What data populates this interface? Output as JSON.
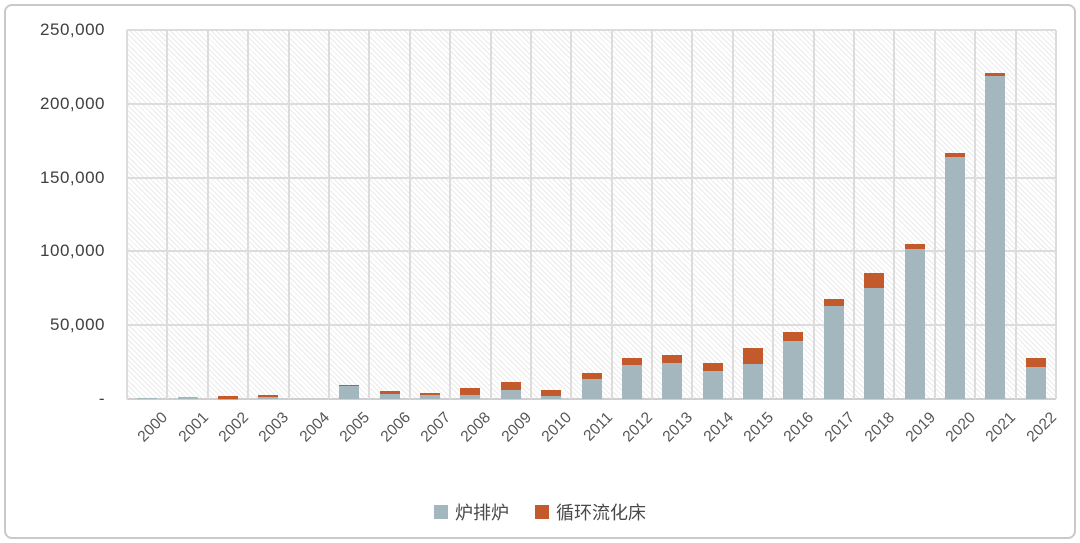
{
  "chart_data": {
    "type": "bar",
    "stacked": true,
    "title": "",
    "xlabel": "",
    "ylabel": "",
    "categories": [
      "2000",
      "2001",
      "2002",
      "2003",
      "2004",
      "2005",
      "2006",
      "2007",
      "2008",
      "2009",
      "2010",
      "2011",
      "2012",
      "2013",
      "2014",
      "2015",
      "2016",
      "2017",
      "2018",
      "2019",
      "2020",
      "2021",
      "2022"
    ],
    "series": [
      {
        "name": "炉排炉",
        "color": "#A4B7BE",
        "values": [
          400,
          1300,
          300,
          1400,
          0,
          8800,
          3700,
          2400,
          2400,
          5800,
          2000,
          13500,
          23000,
          24200,
          19000,
          23700,
          39400,
          63000,
          75500,
          101500,
          164000,
          218700,
          21500
        ]
      },
      {
        "name": "循环流化床",
        "color": "#C25A2B",
        "values": [
          0,
          0,
          2000,
          1500,
          0,
          700,
          1600,
          1600,
          5000,
          6000,
          4200,
          4000,
          5000,
          5600,
          5200,
          10600,
          6100,
          4500,
          10000,
          3800,
          3000,
          2300,
          6000
        ]
      }
    ],
    "y_axis": {
      "min": 0,
      "max": 250000,
      "tick_values": [
        0,
        50000,
        100000,
        150000,
        200000,
        250000
      ],
      "tick_labels": [
        "-",
        "50,000",
        "100,000",
        "150,000",
        "200,000",
        "250,000"
      ]
    },
    "legend_position": "bottom",
    "grid": true,
    "plot_background": "diagonal-hatch"
  }
}
